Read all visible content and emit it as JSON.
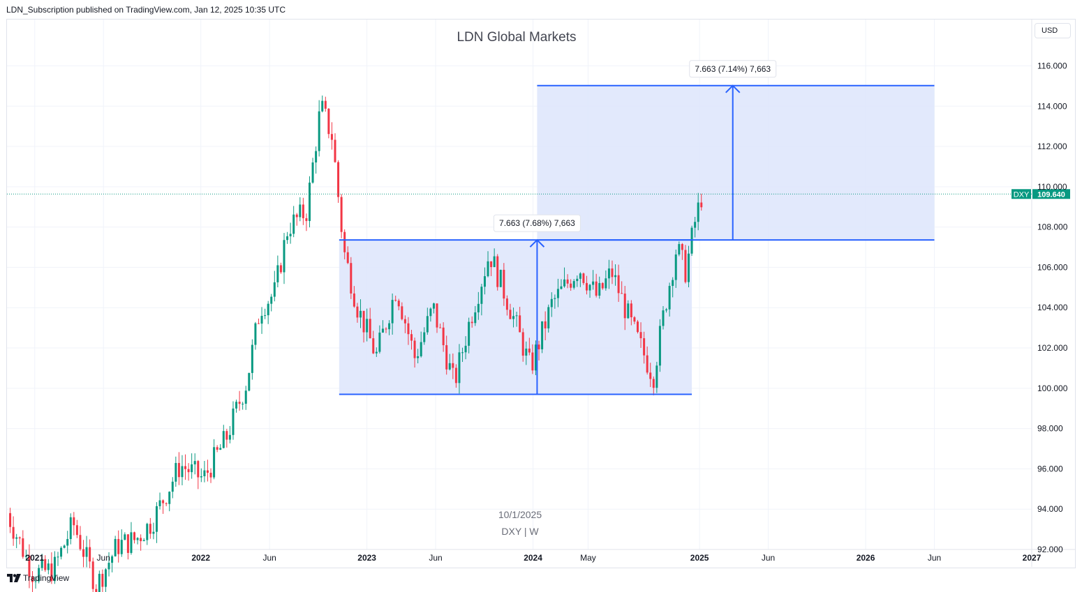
{
  "header": {
    "published_line": "LDN_Subscription published on TradingView.com, Jan 12, 2025 10:35 UTC"
  },
  "toolbar": {
    "currency_label": "USD"
  },
  "footer": {
    "brand_label": "TradingView"
  },
  "colors": {
    "up": "#089981",
    "down": "#f23645",
    "measure_line": "#2962ff",
    "measure_fill": "#dde5fb",
    "grid": "#f0f3fa",
    "price_tag": "#089981"
  },
  "chart_data": {
    "type": "candlestick",
    "title": "LDN Global Markets",
    "watermark_date": "10/1/2025",
    "watermark_symbol": "DXY | W",
    "ylim": [
      92.0,
      118.3
    ],
    "y_ticks": [
      "92.000",
      "94.000",
      "96.000",
      "98.000",
      "100.000",
      "102.000",
      "104.000",
      "106.000",
      "108.000",
      "110.000",
      "112.000",
      "114.000",
      "116.000"
    ],
    "x_ticks": [
      {
        "date": "2021-01-01",
        "label": "2021",
        "bold": true
      },
      {
        "date": "2021-06-01",
        "label": "Jun",
        "bold": false
      },
      {
        "date": "2022-01-01",
        "label": "2022",
        "bold": true
      },
      {
        "date": "2022-06-01",
        "label": "Jun",
        "bold": false
      },
      {
        "date": "2023-01-01",
        "label": "2023",
        "bold": true
      },
      {
        "date": "2023-06-01",
        "label": "Jun",
        "bold": false
      },
      {
        "date": "2024-01-01",
        "label": "2024",
        "bold": true
      },
      {
        "date": "2024-05-01",
        "label": "May",
        "bold": false
      },
      {
        "date": "2025-01-01",
        "label": "2025",
        "bold": true
      },
      {
        "date": "2025-06-01",
        "label": "Jun",
        "bold": false
      },
      {
        "date": "2026-01-01",
        "label": "2026",
        "bold": true
      },
      {
        "date": "2026-06-01",
        "label": "Jun",
        "bold": false
      },
      {
        "date": "2027-01-01",
        "label": "2027",
        "bold": true
      }
    ],
    "x_start": "2020-11-01",
    "x_end": "2027-01-01",
    "last_price": {
      "symbol": "DXY",
      "value": 109.64,
      "label": "109.640"
    },
    "measurements": [
      {
        "x_start": "2022-11-01",
        "x_end": "2024-12-15",
        "x_arrow": "2024-01-10",
        "y_low": 99.7,
        "y_high": 107.36,
        "label": "7.663 (7.68%) 7,663"
      },
      {
        "x_start": "2024-01-10",
        "x_end": "2026-06-01",
        "x_arrow": "2025-03-15",
        "y_low": 107.36,
        "y_high": 115.02,
        "label": "7.663 (7.14%) 7,663"
      }
    ],
    "series": [
      {
        "x": "2020-11-01",
        "y": 94.0
      },
      {
        "x": "2021-01-01",
        "y": 90.8
      },
      {
        "x": "2021-02-15",
        "y": 91.0
      },
      {
        "x": "2021-03-30",
        "y": 93.3
      },
      {
        "x": "2021-05-20",
        "y": 90.2
      },
      {
        "x": "2021-07-05",
        "y": 92.2
      },
      {
        "x": "2021-08-15",
        "y": 92.5
      },
      {
        "x": "2021-09-20",
        "y": 93.4
      },
      {
        "x": "2021-11-20",
        "y": 96.2
      },
      {
        "x": "2022-01-10",
        "y": 95.5
      },
      {
        "x": "2022-03-01",
        "y": 97.5
      },
      {
        "x": "2022-04-15",
        "y": 100.3
      },
      {
        "x": "2022-05-15",
        "y": 104.0
      },
      {
        "x": "2022-06-15",
        "y": 104.7
      },
      {
        "x": "2022-07-15",
        "y": 108.0
      },
      {
        "x": "2022-08-25",
        "y": 108.8
      },
      {
        "x": "2022-09-25",
        "y": 114.0
      },
      {
        "x": "2022-10-20",
        "y": 112.5
      },
      {
        "x": "2022-11-15",
        "y": 106.8
      },
      {
        "x": "2022-12-15",
        "y": 104.0
      },
      {
        "x": "2023-01-25",
        "y": 101.6
      },
      {
        "x": "2023-03-10",
        "y": 105.0
      },
      {
        "x": "2023-04-20",
        "y": 101.5
      },
      {
        "x": "2023-05-30",
        "y": 104.0
      },
      {
        "x": "2023-07-15",
        "y": 100.2
      },
      {
        "x": "2023-08-20",
        "y": 103.5
      },
      {
        "x": "2023-10-01",
        "y": 106.7
      },
      {
        "x": "2023-11-15",
        "y": 104.0
      },
      {
        "x": "2023-12-30",
        "y": 101.0
      },
      {
        "x": "2024-02-15",
        "y": 104.2
      },
      {
        "x": "2024-04-15",
        "y": 106.0
      },
      {
        "x": "2024-05-25",
        "y": 104.5
      },
      {
        "x": "2024-06-25",
        "y": 105.8
      },
      {
        "x": "2024-08-10",
        "y": 103.0
      },
      {
        "x": "2024-09-25",
        "y": 100.6
      },
      {
        "x": "2024-10-20",
        "y": 104.0
      },
      {
        "x": "2024-11-15",
        "y": 107.0
      },
      {
        "x": "2024-12-05",
        "y": 105.8
      },
      {
        "x": "2024-12-25",
        "y": 108.2
      },
      {
        "x": "2025-01-10",
        "y": 109.64
      }
    ]
  }
}
